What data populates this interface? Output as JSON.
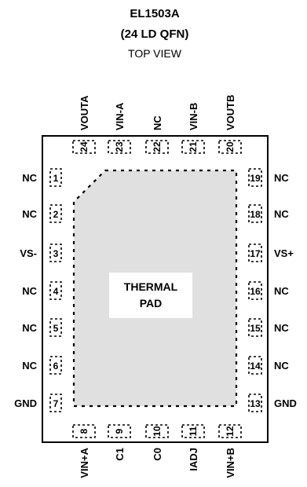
{
  "title": {
    "part": "EL1503A",
    "package": "(24 LD QFN)",
    "view": "TOP VIEW"
  },
  "thermal_pad": {
    "line1": "THERMAL",
    "line2": "PAD",
    "fill": "#e0e0e0"
  },
  "pins": {
    "left": [
      {
        "num": "1",
        "name": "NC"
      },
      {
        "num": "2",
        "name": "NC"
      },
      {
        "num": "3",
        "name": "VS-"
      },
      {
        "num": "4",
        "name": "NC"
      },
      {
        "num": "5",
        "name": "NC"
      },
      {
        "num": "6",
        "name": "NC"
      },
      {
        "num": "7",
        "name": "GND"
      }
    ],
    "right": [
      {
        "num": "19",
        "name": "NC"
      },
      {
        "num": "18",
        "name": "NC"
      },
      {
        "num": "17",
        "name": "VS+"
      },
      {
        "num": "16",
        "name": "NC"
      },
      {
        "num": "15",
        "name": "NC"
      },
      {
        "num": "14",
        "name": "NC"
      },
      {
        "num": "13",
        "name": "GND"
      }
    ],
    "top": [
      {
        "num": "24",
        "name": "VOUTA"
      },
      {
        "num": "23",
        "name": "VIN-A"
      },
      {
        "num": "22",
        "name": "NC"
      },
      {
        "num": "21",
        "name": "VIN-B"
      },
      {
        "num": "20",
        "name": "VOUTB"
      }
    ],
    "bottom": [
      {
        "num": "8",
        "name": "VIN+A"
      },
      {
        "num": "9",
        "name": "C1"
      },
      {
        "num": "10",
        "name": "C0"
      },
      {
        "num": "11",
        "name": "IADJ"
      },
      {
        "num": "12",
        "name": "VIN+B"
      }
    ]
  }
}
